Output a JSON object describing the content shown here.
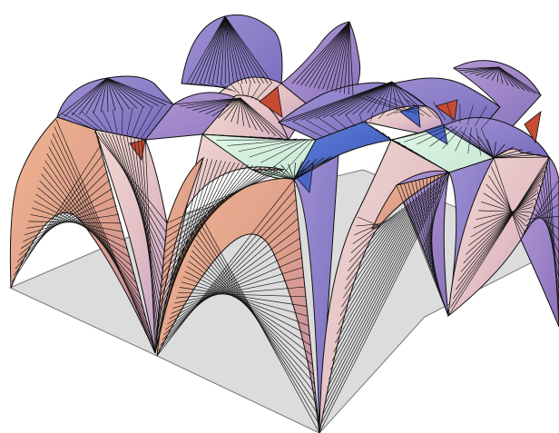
{
  "figure": {
    "kind": "3d-surface-plot",
    "description_visible_text": "",
    "grid": {
      "cells_x": 2,
      "cells_y": 2
    },
    "colors": {
      "background": "#ffffff",
      "floor": "#dcdcdc",
      "edge_line": "#111111",
      "surface_blue": "#8a7fc8",
      "surface_violet": "#a98cc6",
      "surface_pink": "#e7c4c7",
      "surface_salmon": "#e7a07f",
      "surface_cream": "#f1ddd4",
      "surface_mint": "#d8f1df",
      "surface_deep_blue": "#4b66c8",
      "surface_red": "#c64b34"
    }
  }
}
